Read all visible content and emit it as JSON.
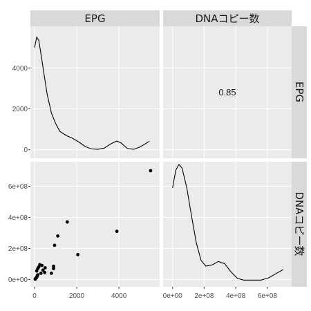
{
  "chart_data": {
    "type": "scatter",
    "variables": [
      "EPG",
      "DNAコピー数"
    ],
    "top_strip": [
      "EPG",
      "DNAコピー数"
    ],
    "right_strip": [
      "EPG",
      "DNAコピー数"
    ],
    "correlation": {
      "label": "0.85",
      "row": "EPG",
      "column": "DNAコピー数"
    },
    "density_epg": {
      "x_range": [
        0,
        5450
      ],
      "y_ticks": [
        "0",
        "2000",
        "4000"
      ],
      "curve_y_scale": [
        0,
        4000
      ],
      "curve": [
        [
          0,
          5000
        ],
        [
          100,
          5500
        ],
        [
          200,
          5350
        ],
        [
          300,
          4700
        ],
        [
          450,
          3700
        ],
        [
          600,
          2700
        ],
        [
          800,
          1800
        ],
        [
          1000,
          1280
        ],
        [
          1200,
          900
        ],
        [
          1500,
          700
        ],
        [
          1800,
          560
        ],
        [
          2100,
          380
        ],
        [
          2400,
          160
        ],
        [
          2700,
          40
        ],
        [
          3000,
          20
        ],
        [
          3300,
          80
        ],
        [
          3600,
          280
        ],
        [
          3900,
          430
        ],
        [
          4100,
          330
        ],
        [
          4400,
          60
        ],
        [
          4700,
          20
        ],
        [
          5000,
          140
        ],
        [
          5450,
          420
        ]
      ]
    },
    "density_dna": {
      "x_range": [
        0,
        700000000
      ],
      "x_ticks": [
        "0e+00",
        "2e+08",
        "4e+08",
        "6e+08"
      ],
      "curve_y_scale": [
        0,
        1
      ],
      "curve": [
        [
          0,
          0.8
        ],
        [
          20000000,
          0.95
        ],
        [
          40000000,
          1.0
        ],
        [
          60000000,
          0.97
        ],
        [
          90000000,
          0.8
        ],
        [
          120000000,
          0.56
        ],
        [
          150000000,
          0.33
        ],
        [
          180000000,
          0.18
        ],
        [
          210000000,
          0.13
        ],
        [
          250000000,
          0.14
        ],
        [
          290000000,
          0.17
        ],
        [
          330000000,
          0.15
        ],
        [
          370000000,
          0.08
        ],
        [
          410000000,
          0.025
        ],
        [
          450000000,
          0.01
        ],
        [
          500000000,
          0.01
        ],
        [
          560000000,
          0.01
        ],
        [
          610000000,
          0.03
        ],
        [
          660000000,
          0.07
        ],
        [
          700000000,
          0.1
        ]
      ]
    },
    "scatter": {
      "xlabel": "EPG",
      "ylabel": "DNAコピー数",
      "x_ticks": [
        "0",
        "2000",
        "4000"
      ],
      "y_ticks": [
        "0e+00",
        "2e+08",
        "4e+08",
        "6e+08"
      ],
      "points": [
        [
          30,
          2000000
        ],
        [
          50,
          6000000
        ],
        [
          80,
          10000000
        ],
        [
          100,
          15000000
        ],
        [
          120,
          20000000
        ],
        [
          150,
          30000000
        ],
        [
          100,
          55000000
        ],
        [
          150,
          70000000
        ],
        [
          200,
          80000000
        ],
        [
          250,
          95000000
        ],
        [
          350,
          90000000
        ],
        [
          400,
          60000000
        ],
        [
          300,
          40000000
        ],
        [
          480,
          45000000
        ],
        [
          500,
          75000000
        ],
        [
          800,
          40000000
        ],
        [
          900,
          70000000
        ],
        [
          900,
          85000000
        ],
        [
          950,
          220000000
        ],
        [
          1100,
          280000000
        ],
        [
          1550,
          370000000
        ],
        [
          2050,
          160000000
        ],
        [
          3900,
          310000000
        ],
        [
          5500,
          700000000
        ]
      ]
    }
  }
}
